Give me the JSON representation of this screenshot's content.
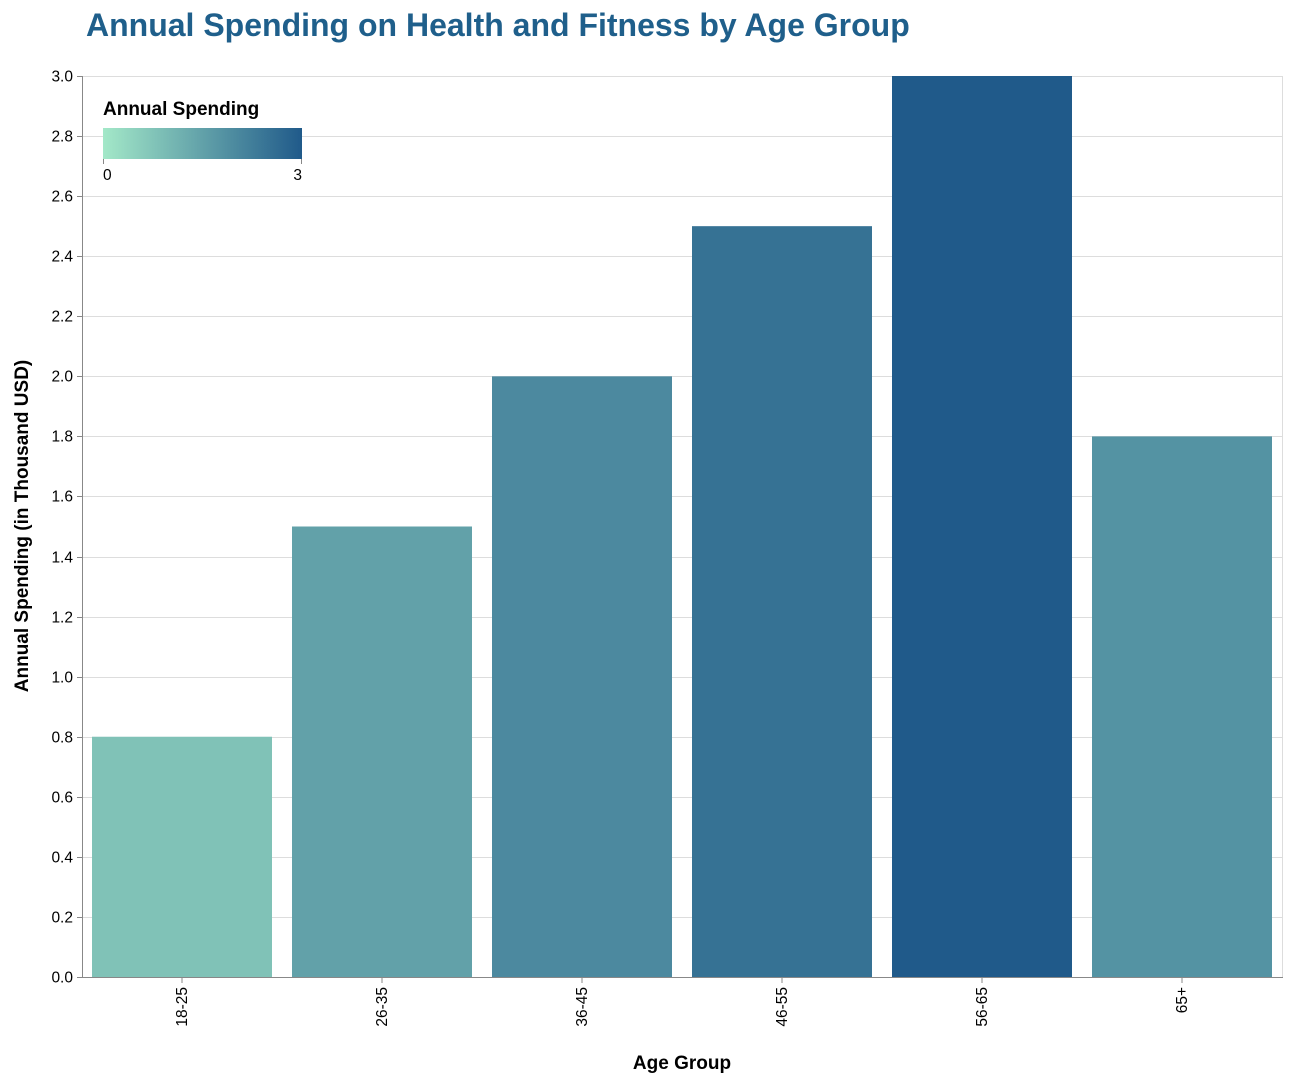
{
  "chart_data": {
    "type": "bar",
    "title": "Annual Spending on Health and Fitness by Age Group",
    "xlabel": "Age Group",
    "ylabel": "Annual Spending (in Thousand USD)",
    "categories": [
      "18-25",
      "26-35",
      "36-45",
      "46-55",
      "56-65",
      "65+"
    ],
    "values": [
      0.8,
      1.5,
      2.0,
      2.5,
      3.0,
      1.8
    ],
    "ylim": [
      0,
      3
    ],
    "yticks": [
      "0.0",
      "0.2",
      "0.4",
      "0.6",
      "0.8",
      "1.0",
      "1.2",
      "1.4",
      "1.6",
      "1.8",
      "2.0",
      "2.2",
      "2.4",
      "2.6",
      "2.8",
      "3.0"
    ],
    "grid": true,
    "legend": {
      "title": "Annual Spending",
      "min_label": "0",
      "max_label": "3",
      "placement": "top-left"
    },
    "colors": {
      "title": "#1f5f8b",
      "gradient_low": "#a3e8c8",
      "gradient_high": "#205a8a",
      "grid": "#dddddd",
      "axis": "#888888"
    }
  }
}
